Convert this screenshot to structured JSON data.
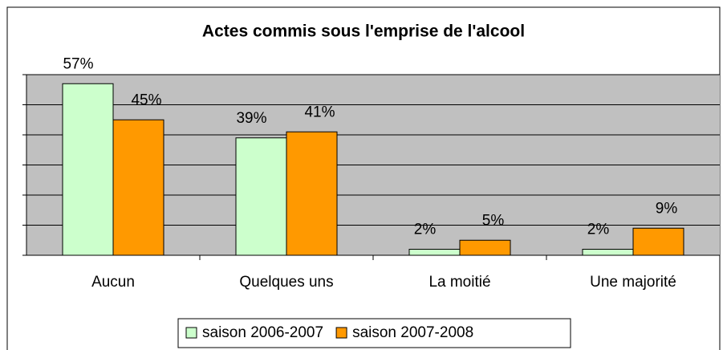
{
  "chart_data": {
    "type": "bar",
    "title": "Actes commis sous l'emprise de l'alcool",
    "categories": [
      "Aucun",
      "Quelques uns",
      "La moitié",
      "Une majorité"
    ],
    "series": [
      {
        "name": "saison 2006-2007",
        "color": "#ccffcc",
        "values": [
          57,
          39,
          2,
          2
        ],
        "value_labels": [
          "57%",
          "39%",
          "2%",
          "2%"
        ]
      },
      {
        "name": "saison 2007-2008",
        "color": "#ff9900",
        "values": [
          45,
          41,
          5,
          9
        ],
        "value_labels": [
          "45%",
          "41%",
          "5%",
          "9%"
        ]
      }
    ],
    "ylim": [
      0,
      60
    ],
    "yticks": [
      0,
      10,
      20,
      30,
      40,
      50,
      60
    ],
    "grid": true,
    "legend": "bottom"
  }
}
